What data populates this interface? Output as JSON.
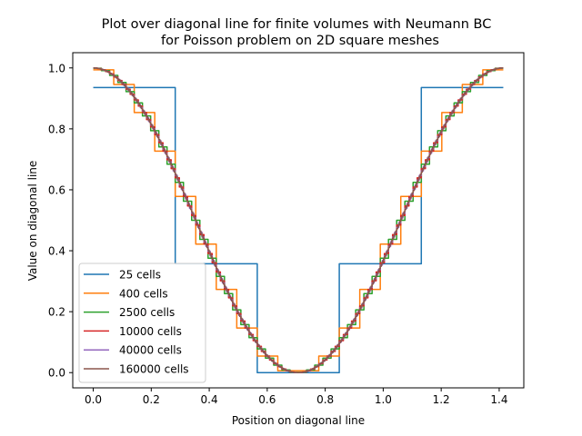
{
  "chart_data": {
    "type": "line",
    "title": "Plot over diagonal line for finite volumes with Neumann BC",
    "subtitle": "for Poisson problem on 2D square meshes",
    "xlabel": "Position on diagonal line",
    "ylabel": "Value on diagonal line",
    "xlim": [
      -0.0707,
      1.4849
    ],
    "ylim": [
      -0.05,
      1.05
    ],
    "xticks": [
      "0.0",
      "0.2",
      "0.4",
      "0.6",
      "0.8",
      "1.0",
      "1.2",
      "1.4"
    ],
    "yticks": [
      "0.0",
      "0.2",
      "0.4",
      "0.6",
      "0.8",
      "1.0"
    ],
    "grid": false,
    "legend_position": "lower-left",
    "series": [
      {
        "name": "25 cells",
        "color": "#1f77b4",
        "x": [
          0.0,
          0.2828,
          0.2828,
          0.5657,
          0.5657,
          0.8485,
          0.8485,
          1.1314,
          1.1314,
          1.4142
        ],
        "y": [
          0.9355,
          0.9355,
          0.3573,
          0.3573,
          0.0,
          0.0,
          0.3573,
          0.3573,
          0.9355,
          0.9355
        ]
      },
      {
        "name": "400 cells",
        "color": "#ff7f0e",
        "steps": 20
      },
      {
        "name": "2500 cells",
        "color": "#2ca02c",
        "steps": 50
      },
      {
        "name": "10000 cells",
        "color": "#d62728",
        "steps": 100
      },
      {
        "name": "40000 cells",
        "color": "#9467bd",
        "steps": 200
      },
      {
        "name": "160000 cells",
        "color": "#8c564b",
        "steps": 400
      }
    ]
  }
}
